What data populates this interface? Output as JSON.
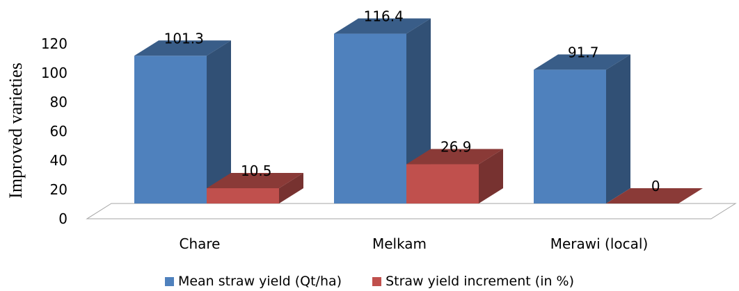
{
  "chart_data": {
    "type": "bar",
    "style": "3d-clustered-column",
    "categories": [
      "Chare",
      "Melkam",
      "Merawi (local)"
    ],
    "series": [
      {
        "name": "Mean straw yield (Qt/ha)",
        "values": [
          101.3,
          116.4,
          91.7
        ],
        "color": "#4f81bd",
        "label_texts": [
          "101.3",
          "116.4",
          "91.7"
        ]
      },
      {
        "name": "Straw yield increment (in %)",
        "values": [
          10.5,
          26.9,
          0
        ],
        "color": "#c0504d",
        "label_texts": [
          "10.5",
          "26.9",
          "0"
        ]
      }
    ],
    "ylabel": "Improved varieties",
    "xlabel": "",
    "ylim": [
      0,
      120
    ],
    "yticks": [
      0,
      20,
      40,
      60,
      80,
      100,
      120
    ],
    "grid": false,
    "legend": "bottom",
    "data_labels": true
  }
}
